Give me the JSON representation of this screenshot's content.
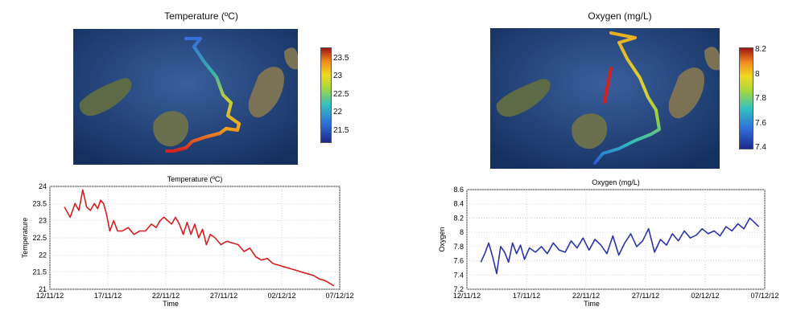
{
  "maps": [
    {
      "title": "Temperature (ºC)",
      "colorbar": {
        "ticks": [
          "23.5",
          "23",
          "22.5",
          "22",
          "21.5"
        ],
        "min": 21.2,
        "max": 23.8
      }
    },
    {
      "title": "Oxygen (mg/L)",
      "colorbar": {
        "ticks": [
          "8.2",
          "8",
          "7.8",
          "7.6",
          "7.4"
        ],
        "min": 7.4,
        "max": 8.22
      }
    }
  ],
  "chart_data": [
    {
      "type": "line",
      "title": "Temperature (ºC)",
      "xlabel": "Time",
      "ylabel": "Temperature",
      "x_tick_labels": [
        "12/11/12",
        "17/11/12",
        "22/11/12",
        "27/11/12",
        "02/12/12",
        "07/12/12"
      ],
      "y_tick_labels": [
        "21",
        "21.5",
        "22",
        "22.5",
        "23",
        "23.5",
        "24"
      ],
      "xlim": [
        "12/11/12",
        "07/12/12"
      ],
      "ylim": [
        21,
        24
      ],
      "grid": true,
      "color": "#d42020",
      "series": [
        {
          "x": [
            "13/11/12",
            "13/11/12",
            "14/11/12",
            "14/11/12",
            "14/11/12",
            "15/11/12",
            "15/11/12",
            "15/11/12",
            "16/11/12",
            "16/11/12",
            "16/11/12",
            "16/11/12",
            "17/11/12",
            "17/11/12",
            "17/11/12",
            "18/11/12",
            "18/11/12",
            "19/11/12",
            "19/11/12",
            "20/11/12",
            "20/11/12",
            "21/11/12",
            "21/11/12",
            "21/11/12",
            "22/11/12",
            "22/11/12",
            "22/11/12",
            "23/11/12",
            "23/11/12",
            "23/11/12",
            "24/11/12",
            "24/11/12",
            "24/11/12",
            "25/11/12",
            "25/11/12",
            "25/11/12",
            "26/11/12",
            "26/11/12",
            "27/11/12",
            "27/11/12",
            "28/11/12",
            "28/11/12",
            "29/11/12",
            "29/11/12",
            "30/11/12",
            "30/11/12",
            "01/12/12",
            "01/12/12",
            "02/12/12",
            "02/12/12",
            "03/12/12",
            "03/12/12",
            "04/12/12",
            "04/12/12",
            "05/12/12",
            "05/12/12",
            "06/12/12"
          ],
          "y": [
            23.4,
            23.1,
            23.5,
            23.3,
            23.9,
            23.4,
            23.3,
            23.5,
            23.35,
            23.6,
            23.5,
            23.2,
            22.7,
            23.0,
            22.7,
            22.7,
            22.8,
            22.6,
            22.7,
            22.7,
            22.9,
            22.8,
            23.0,
            23.1,
            23.0,
            22.9,
            23.1,
            22.9,
            22.6,
            22.95,
            22.6,
            22.9,
            22.5,
            22.75,
            22.3,
            22.6,
            22.5,
            22.3,
            22.4,
            22.35,
            22.3,
            22.1,
            22.2,
            21.95,
            21.85,
            21.9,
            21.75,
            21.7,
            21.65,
            21.6,
            21.55,
            21.5,
            21.45,
            21.4,
            21.3,
            21.25,
            21.1
          ]
        }
      ]
    },
    {
      "type": "line",
      "title": "Oxygen (mg/L)",
      "xlabel": "Time",
      "ylabel": "Oxygen",
      "x_tick_labels": [
        "12/11/12",
        "17/11/12",
        "22/11/12",
        "27/11/12",
        "02/12/12",
        "07/12/12"
      ],
      "y_tick_labels": [
        "7.2",
        "7.4",
        "7.6",
        "7.8",
        "8",
        "8.2",
        "8.4",
        "8.6"
      ],
      "xlim": [
        "12/11/12",
        "07/12/12"
      ],
      "ylim": [
        7.2,
        8.6
      ],
      "grid": true,
      "color": "#2a34a8",
      "series": [
        {
          "x": [
            "13/11/12",
            "13/11/12",
            "13/11/12",
            "14/11/12",
            "14/11/12",
            "14/11/12",
            "15/11/12",
            "15/11/12",
            "15/11/12",
            "16/11/12",
            "16/11/12",
            "16/11/12",
            "17/11/12",
            "17/11/12",
            "18/11/12",
            "18/11/12",
            "19/11/12",
            "19/11/12",
            "20/11/12",
            "20/11/12",
            "21/11/12",
            "21/11/12",
            "22/11/12",
            "22/11/12",
            "23/11/12",
            "23/11/12",
            "24/11/12",
            "24/11/12",
            "25/11/12",
            "25/11/12",
            "26/11/12",
            "26/11/12",
            "27/11/12",
            "27/11/12",
            "28/11/12",
            "28/11/12",
            "29/11/12",
            "29/11/12",
            "30/11/12",
            "30/11/12",
            "01/12/12",
            "01/12/12",
            "02/12/12",
            "02/12/12",
            "03/12/12",
            "03/12/12",
            "04/12/12",
            "04/12/12",
            "05/12/12",
            "05/12/12",
            "06/12/12"
          ],
          "y": [
            7.58,
            7.7,
            7.85,
            7.65,
            7.42,
            7.8,
            7.72,
            7.58,
            7.85,
            7.7,
            7.82,
            7.62,
            7.78,
            7.72,
            7.8,
            7.7,
            7.85,
            7.75,
            7.72,
            7.88,
            7.78,
            7.92,
            7.75,
            7.9,
            7.82,
            7.7,
            7.95,
            7.68,
            7.85,
            7.98,
            7.8,
            7.88,
            8.05,
            7.72,
            7.9,
            7.82,
            7.98,
            7.88,
            8.02,
            7.92,
            7.96,
            8.05,
            7.98,
            8.02,
            7.95,
            8.08,
            8.02,
            8.12,
            8.05,
            8.2,
            8.08
          ]
        }
      ]
    }
  ]
}
